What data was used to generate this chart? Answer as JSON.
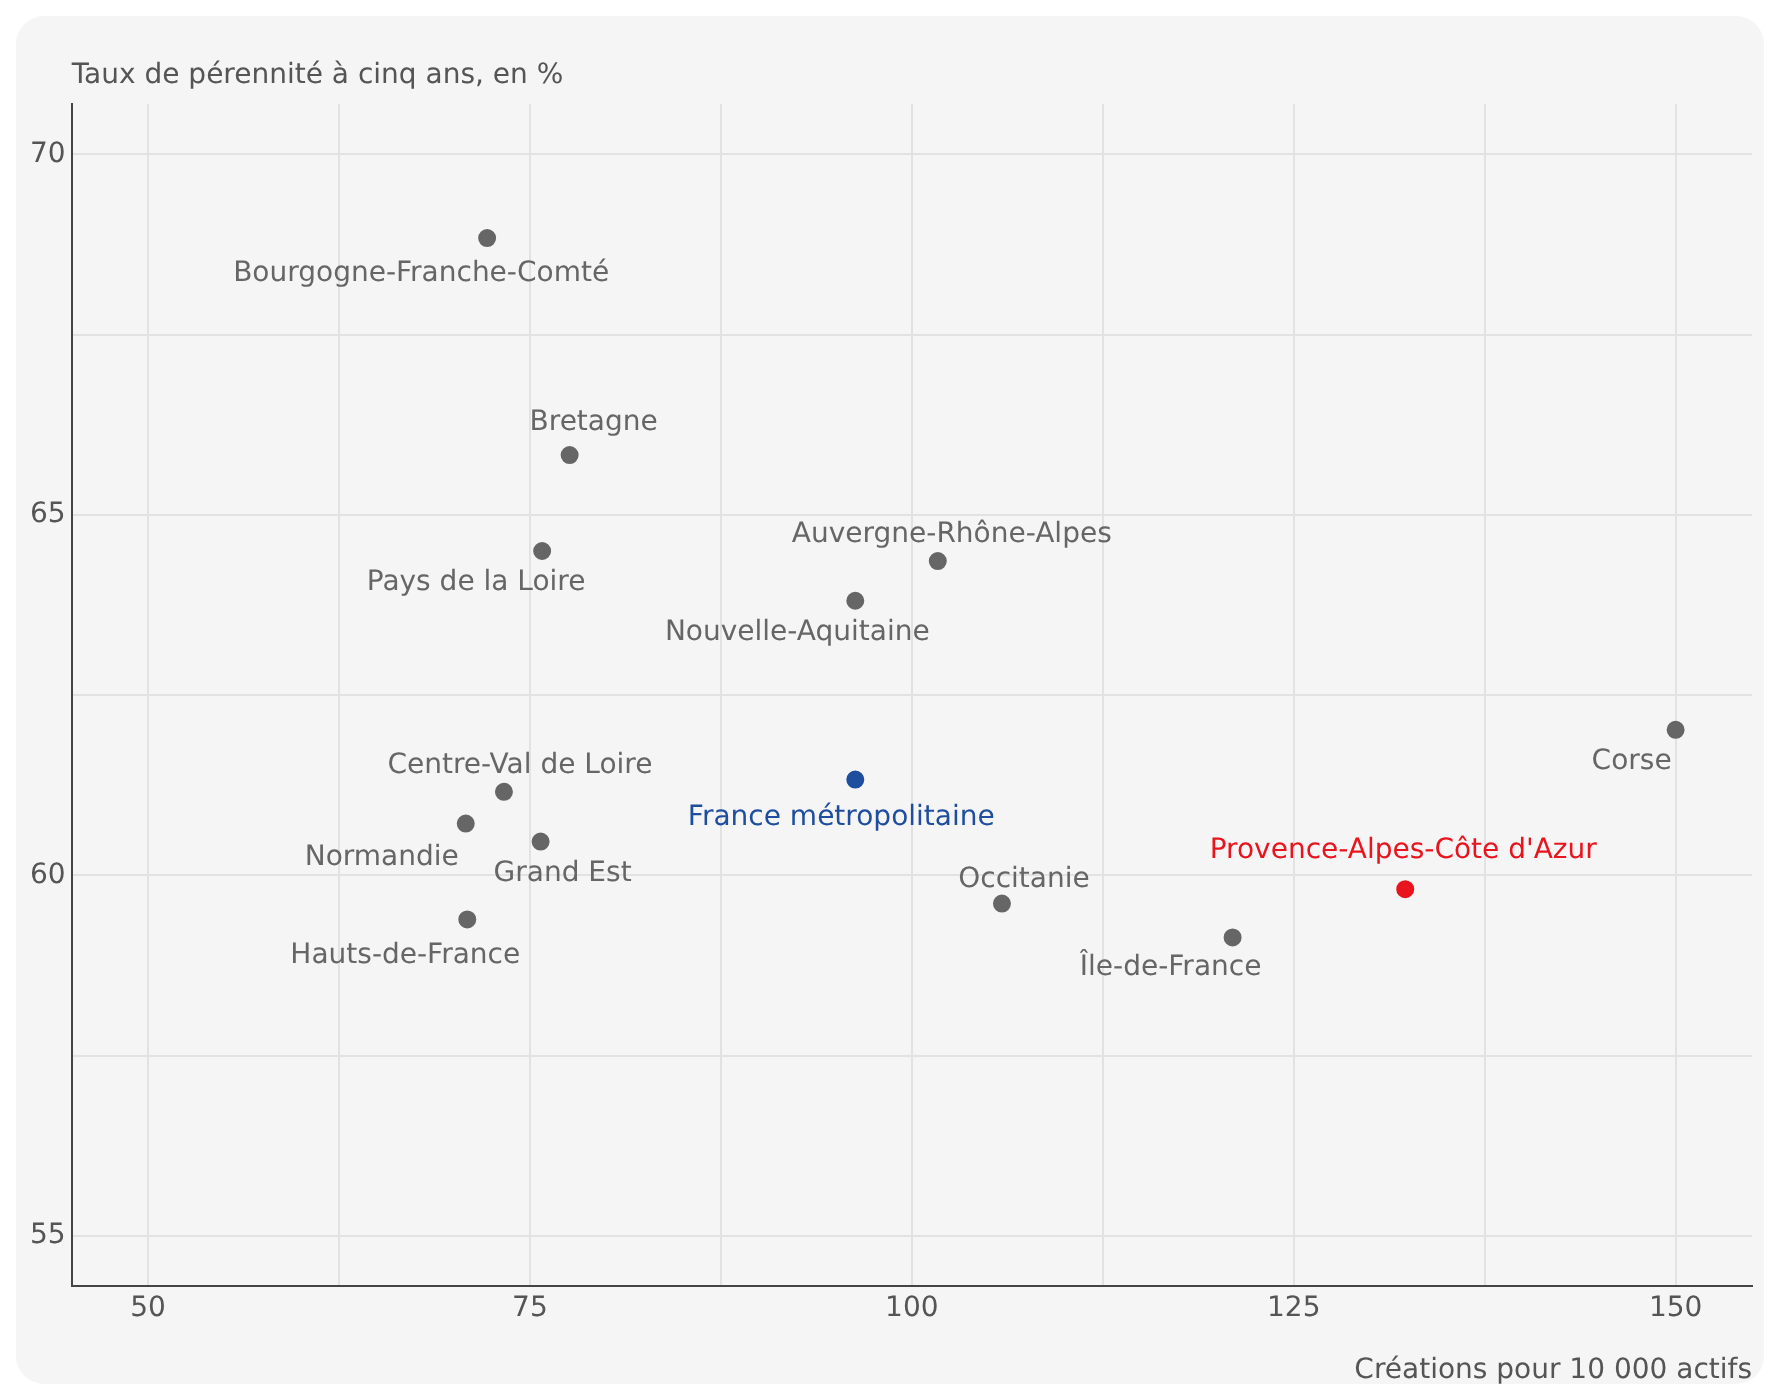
{
  "chart_data": {
    "type": "scatter",
    "ylabel": "Taux de pérennité à cinq ans, en %",
    "xlabel": "Créations pour 10 000 actifs",
    "xlim": [
      45,
      155
    ],
    "xticks": [
      50,
      {
        "value": 62.5,
        "label": null
      },
      75,
      {
        "value": 87.5,
        "label": null
      },
      100,
      {
        "value": 112.5,
        "label": null
      },
      125,
      {
        "value": 137.5,
        "label": null
      },
      150
    ],
    "ylim": [
      54.3,
      70.7
    ],
    "yticks": [
      55,
      {
        "value": 57.5,
        "label": null
      },
      60,
      {
        "value": 62.5,
        "label": null
      },
      65,
      {
        "value": 67.5,
        "label": null
      },
      70
    ],
    "grid": true,
    "legend": false,
    "marker": "circle",
    "series": [
      {
        "name": "Bourgogne-Franche-Comté",
        "color": "#666666",
        "x": [
          72.2
        ],
        "values": [
          68.84
        ]
      },
      {
        "name": "Bretagne",
        "color": "#666666",
        "x": [
          77.6
        ],
        "values": [
          65.83
        ]
      },
      {
        "name": "Pays de la Loire",
        "color": "#666666",
        "x": [
          75.8
        ],
        "values": [
          64.5
        ]
      },
      {
        "name": "Auvergne-Rhône-Alpes",
        "color": "#666666",
        "x": [
          101.7
        ],
        "values": [
          64.36
        ]
      },
      {
        "name": "Nouvelle-Aquitaine",
        "color": "#666666",
        "x": [
          96.3
        ],
        "values": [
          63.81
        ]
      },
      {
        "name": "Corse",
        "color": "#666666",
        "x": [
          150.0
        ],
        "values": [
          62.02
        ]
      },
      {
        "name": "Centre-Val de Loire",
        "color": "#666666",
        "x": [
          73.3
        ],
        "values": [
          61.16
        ]
      },
      {
        "name": "France métropolitaine",
        "color": "#1f4e9e",
        "x": [
          96.3
        ],
        "values": [
          61.33
        ]
      },
      {
        "name": "Normandie",
        "color": "#666666",
        "x": [
          70.8
        ],
        "values": [
          60.72
        ]
      },
      {
        "name": "Grand Est",
        "color": "#666666",
        "x": [
          75.7
        ],
        "values": [
          60.47
        ]
      },
      {
        "name": "Occitanie",
        "color": "#666666",
        "x": [
          105.9
        ],
        "values": [
          59.61
        ]
      },
      {
        "name": "Provence-Alpes-Côte d'Azur",
        "color": "#e8141e",
        "x": [
          132.3
        ],
        "values": [
          59.81
        ]
      },
      {
        "name": "Île-de-France",
        "color": "#666666",
        "x": [
          121.0
        ],
        "values": [
          59.14
        ]
      },
      {
        "name": "Hauts-de-France",
        "color": "#666666",
        "x": [
          70.9
        ],
        "values": [
          59.39
        ]
      }
    ]
  }
}
